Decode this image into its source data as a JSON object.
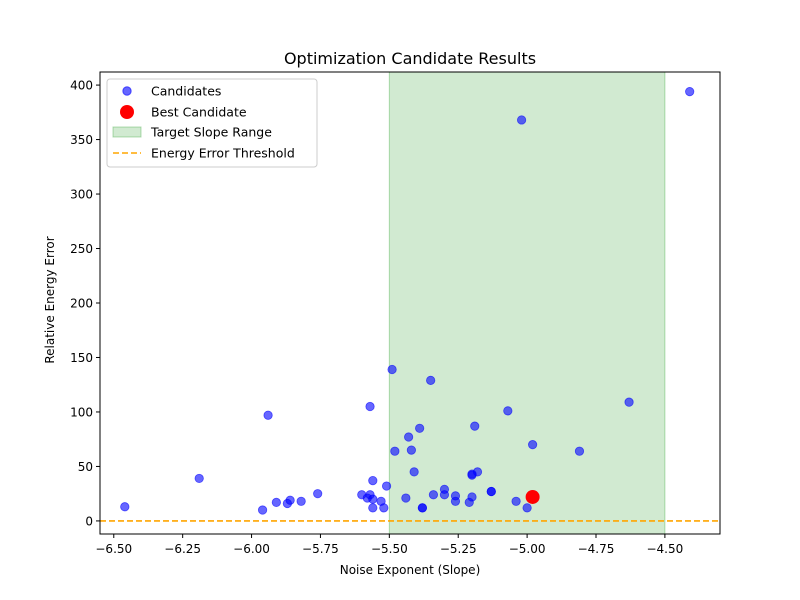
{
  "chart_data": {
    "type": "scatter",
    "title": "Optimization Candidate Results",
    "xlabel": "Noise Exponent (Slope)",
    "ylabel": "Relative Energy Error",
    "xlim": [
      -6.55,
      -4.3
    ],
    "ylim": [
      -12,
      412
    ],
    "xticks": [
      -6.5,
      -6.25,
      -6.0,
      -5.75,
      -5.5,
      -5.25,
      -5.0,
      -4.75,
      -4.5
    ],
    "xtick_labels": [
      "−6.50",
      "−6.25",
      "−6.00",
      "−5.75",
      "−5.50",
      "−5.25",
      "−5.00",
      "−4.75",
      "−4.50"
    ],
    "yticks": [
      0,
      50,
      100,
      150,
      200,
      250,
      300,
      350,
      400
    ],
    "ytick_labels": [
      "0",
      "50",
      "100",
      "150",
      "200",
      "250",
      "300",
      "350",
      "400"
    ],
    "grid": false,
    "legend_position": "top-left",
    "legend": [
      {
        "label": "Candidates",
        "kind": "marker"
      },
      {
        "label": "Best Candidate",
        "kind": "big-marker"
      },
      {
        "label": "Target Slope Range",
        "kind": "patch"
      },
      {
        "label": "Energy Error Threshold",
        "kind": "dashed-line"
      }
    ],
    "colors": {
      "candidates": "#0000ff",
      "best": "#ff0000",
      "target_range": "#2ca02c",
      "threshold": "#ffa500"
    },
    "target_slope_range": [
      -5.5,
      -4.5
    ],
    "energy_error_threshold": 0,
    "series": [
      {
        "name": "Candidates",
        "points": [
          [
            -6.46,
            13
          ],
          [
            -6.19,
            39
          ],
          [
            -5.96,
            10
          ],
          [
            -5.94,
            97
          ],
          [
            -5.91,
            17
          ],
          [
            -5.87,
            16
          ],
          [
            -5.86,
            19
          ],
          [
            -5.82,
            18
          ],
          [
            -5.76,
            25
          ],
          [
            -5.6,
            24
          ],
          [
            -5.58,
            21
          ],
          [
            -5.57,
            105
          ],
          [
            -5.57,
            24
          ],
          [
            -5.56,
            20
          ],
          [
            -5.56,
            12
          ],
          [
            -5.56,
            37
          ],
          [
            -5.53,
            18
          ],
          [
            -5.52,
            12
          ],
          [
            -5.51,
            32
          ],
          [
            -5.49,
            139
          ],
          [
            -5.48,
            64
          ],
          [
            -5.44,
            21
          ],
          [
            -5.43,
            77
          ],
          [
            -5.42,
            65
          ],
          [
            -5.41,
            45
          ],
          [
            -5.39,
            85
          ],
          [
            -5.38,
            12
          ],
          [
            -5.38,
            12
          ],
          [
            -5.35,
            129
          ],
          [
            -5.34,
            24
          ],
          [
            -5.3,
            29
          ],
          [
            -5.3,
            24
          ],
          [
            -5.26,
            23
          ],
          [
            -5.26,
            18
          ],
          [
            -5.21,
            17
          ],
          [
            -5.2,
            22
          ],
          [
            -5.2,
            43
          ],
          [
            -5.2,
            42
          ],
          [
            -5.19,
            87
          ],
          [
            -5.18,
            45
          ],
          [
            -5.13,
            27
          ],
          [
            -5.13,
            27
          ],
          [
            -5.07,
            101
          ],
          [
            -5.04,
            18
          ],
          [
            -5.02,
            368
          ],
          [
            -5.0,
            12
          ],
          [
            -4.98,
            70
          ],
          [
            -4.81,
            64
          ],
          [
            -4.63,
            109
          ],
          [
            -4.41,
            394
          ]
        ]
      },
      {
        "name": "Best Candidate",
        "points": [
          [
            -4.98,
            22
          ]
        ]
      }
    ]
  }
}
